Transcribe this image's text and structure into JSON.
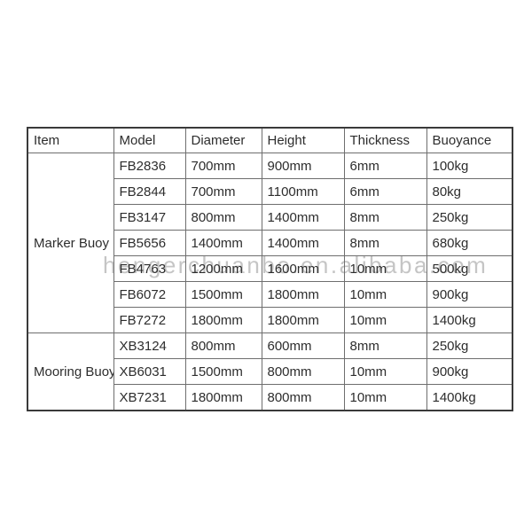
{
  "watermark": "hengerchuanbo.en.alibaba.com",
  "colors": {
    "background": "#ffffff",
    "outer_border": "#3a3a3a",
    "inner_border": "#6e6e6e",
    "text": "#2d2d2d",
    "watermark_gray": "#969696"
  },
  "chart_data": {
    "type": "table",
    "columns": [
      "Item",
      "Model",
      "Diameter",
      "Height",
      "Thickness",
      "Buoyance"
    ],
    "groups": [
      {
        "item": "Marker Buoy",
        "rows": [
          [
            "FB2836",
            "700mm",
            "900mm",
            "6mm",
            "100kg"
          ],
          [
            "FB2844",
            "700mm",
            "1100mm",
            "6mm",
            "80kg"
          ],
          [
            "FB3147",
            "800mm",
            "1400mm",
            "8mm",
            "250kg"
          ],
          [
            "FB5656",
            "1400mm",
            "1400mm",
            "8mm",
            "680kg"
          ],
          [
            "FB4763",
            "1200mm",
            "1600mm",
            "10mm",
            "500kg"
          ],
          [
            "FB6072",
            "1500mm",
            "1800mm",
            "10mm",
            "900kg"
          ],
          [
            "FB7272",
            "1800mm",
            "1800mm",
            "10mm",
            "1400kg"
          ]
        ]
      },
      {
        "item": "Mooring Buoy",
        "rows": [
          [
            "XB3124",
            "800mm",
            "600mm",
            "8mm",
            "250kg"
          ],
          [
            "XB6031",
            "1500mm",
            "800mm",
            "10mm",
            "900kg"
          ],
          [
            "XB7231",
            "1800mm",
            "800mm",
            "10mm",
            "1400kg"
          ]
        ]
      }
    ]
  }
}
